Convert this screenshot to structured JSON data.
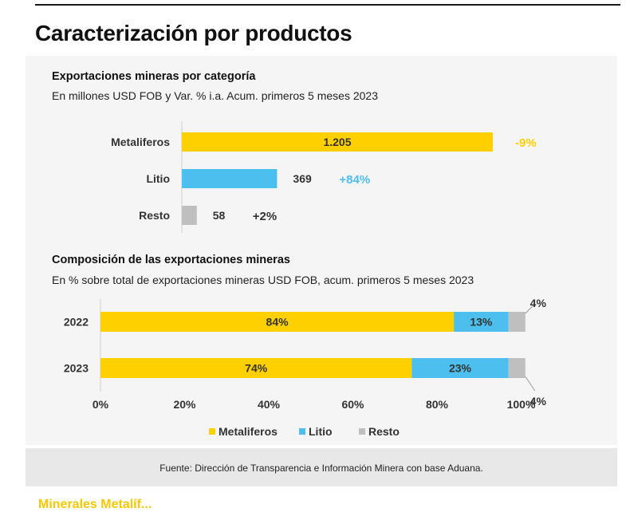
{
  "page": {
    "title": "Caracterización por productos",
    "source": "Fuente: Dirección de Transparencia e Información Minera con base Aduana.",
    "cut_text": "Minerales Metalíf..."
  },
  "colors": {
    "metaliferos": "#FFD000",
    "litio": "#4DBFEE",
    "resto": "#BFBFBF",
    "axis": "#cfcfcf"
  },
  "chart_data": [
    {
      "type": "bar",
      "orientation": "horizontal",
      "title": "Exportaciones mineras por categoría",
      "subtitle": "En millones USD FOB y Var. % i.a. Acum. primeros 5 meses 2023",
      "categories": [
        "Metaliferos",
        "Litio",
        "Resto"
      ],
      "values": [
        1205,
        369,
        58
      ],
      "value_labels": [
        "1.205",
        "369",
        "58"
      ],
      "changes": [
        "-9%",
        "+84%",
        "+2%"
      ],
      "xlim": [
        0,
        1300
      ]
    },
    {
      "type": "bar",
      "orientation": "horizontal",
      "stacked": true,
      "title": "Composición de las exportaciones mineras",
      "subtitle": "En % sobre total de exportaciones mineras USD FOB, acum. primeros 5 meses 2023",
      "categories": [
        "2022",
        "2023"
      ],
      "series": [
        {
          "name": "Metaliferos",
          "values": [
            84,
            74
          ]
        },
        {
          "name": "Litio",
          "values": [
            13,
            23
          ]
        },
        {
          "name": "Resto",
          "values": [
            4,
            4
          ]
        }
      ],
      "xticks": [
        "0%",
        "20%",
        "40%",
        "60%",
        "80%",
        "100%"
      ],
      "xlim": [
        0,
        100
      ],
      "legend": "bottom",
      "grid": false
    }
  ]
}
